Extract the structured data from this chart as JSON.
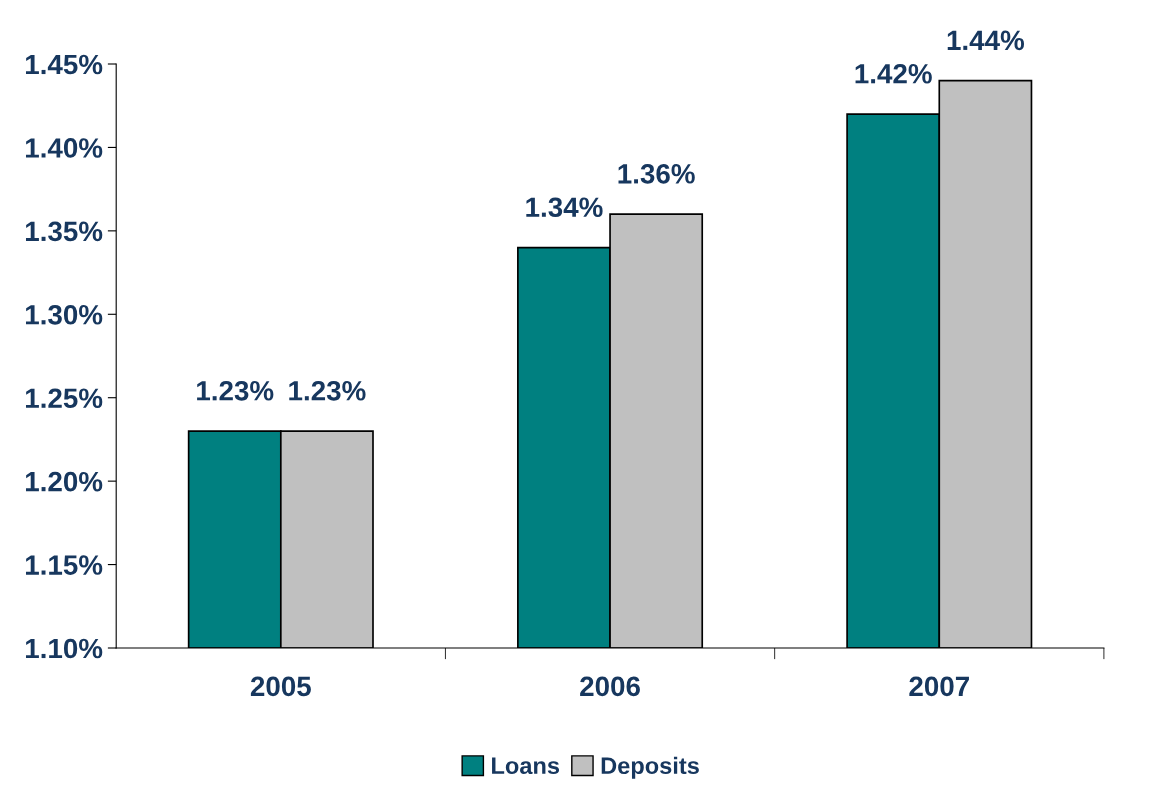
{
  "chart_data": {
    "type": "bar",
    "categories": [
      "2005",
      "2006",
      "2007"
    ],
    "series": [
      {
        "name": "Loans",
        "color": "#008080",
        "values": [
          1.23,
          1.34,
          1.42
        ],
        "value_labels": [
          "1.23%",
          "1.34%",
          "1.42%"
        ]
      },
      {
        "name": "Deposits",
        "color": "#c0c0c0",
        "values": [
          1.23,
          1.36,
          1.44
        ],
        "value_labels": [
          "1.23%",
          "1.36%",
          "1.44%"
        ]
      }
    ],
    "ylim": [
      1.1,
      1.45
    ],
    "yticks": [
      {
        "value": 1.1,
        "label": "1.10%"
      },
      {
        "value": 1.15,
        "label": "1.15%"
      },
      {
        "value": 1.2,
        "label": "1.20%"
      },
      {
        "value": 1.25,
        "label": "1.25%"
      },
      {
        "value": 1.3,
        "label": "1.30%"
      },
      {
        "value": 1.35,
        "label": "1.35%"
      },
      {
        "value": 1.4,
        "label": "1.40%"
      },
      {
        "value": 1.45,
        "label": "1.45%"
      }
    ],
    "grid": false,
    "legend": "bottom"
  }
}
